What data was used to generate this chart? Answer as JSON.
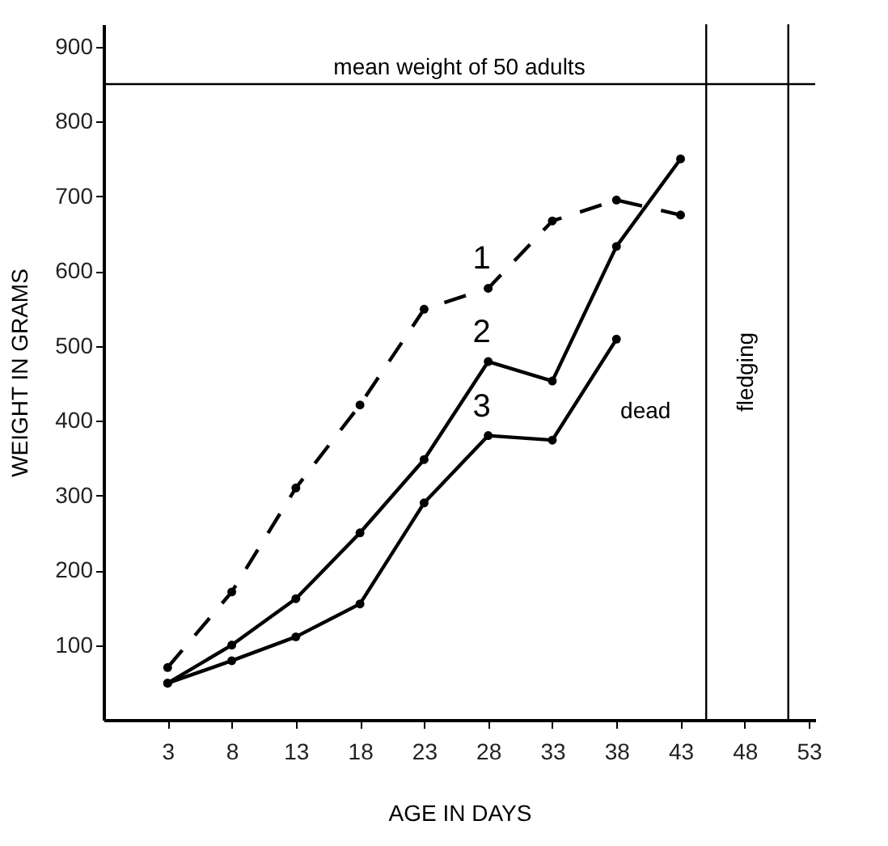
{
  "chart_data": {
    "type": "line",
    "xlabel": "AGE IN DAYS",
    "ylabel": "WEIGHT IN GRAMS",
    "xlim": [
      -2,
      53.5
    ],
    "xticks": [
      3,
      8,
      13,
      18,
      23,
      28,
      33,
      38,
      43,
      48,
      53
    ],
    "ylim": [
      0,
      930
    ],
    "yticks": [
      100,
      200,
      300,
      400,
      500,
      600,
      700,
      800,
      900
    ],
    "grid": false,
    "marker": "circle",
    "series": [
      {
        "name": "1",
        "color": "#000000",
        "line_style": "dashed",
        "x": [
          3,
          8,
          13,
          18,
          23,
          28,
          33,
          38,
          43
        ],
        "values": [
          70,
          171,
          310,
          421,
          549,
          577,
          667,
          695,
          675
        ]
      },
      {
        "name": "2",
        "color": "#000000",
        "line_style": "solid",
        "x": [
          3,
          8,
          13,
          18,
          23,
          28,
          33,
          38,
          43
        ],
        "values": [
          49,
          100,
          162,
          250,
          348,
          479,
          453,
          633,
          750
        ]
      },
      {
        "name": "3",
        "color": "#000000",
        "line_style": "solid",
        "x": [
          3,
          8,
          13,
          18,
          23,
          28,
          33,
          38
        ],
        "values": [
          49,
          79,
          111,
          155,
          290,
          380,
          374,
          509
        ]
      }
    ],
    "ref_lines": [
      {
        "axis": "y",
        "value": 850,
        "label": "mean weight of 50 adults",
        "color": "#000000"
      },
      {
        "axis": "x",
        "value": 45,
        "color": "#000000"
      },
      {
        "axis": "x",
        "value": 51.4,
        "label": "fledging",
        "color": "#000000"
      }
    ],
    "annotations": [
      {
        "text": "dead",
        "x": 38,
        "y": 509
      }
    ]
  }
}
